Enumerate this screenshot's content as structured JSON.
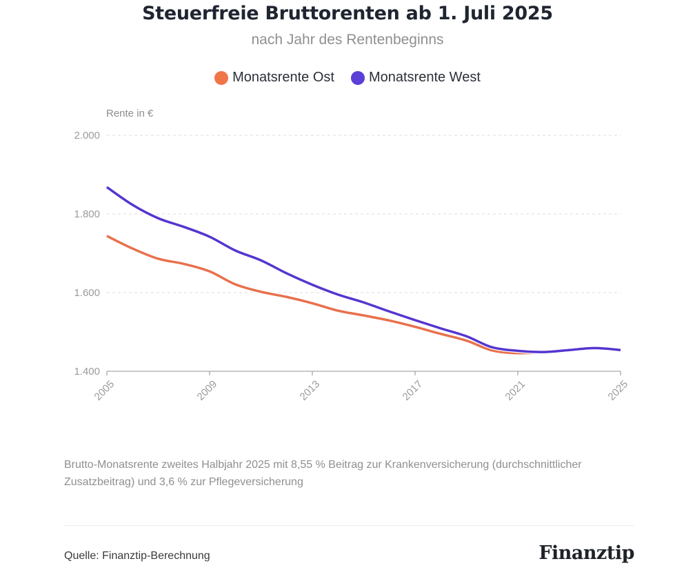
{
  "header": {
    "title": "Steuerfreie Bruttorenten ab 1. Juli 2025",
    "subtitle": "nach Jahr des Rentenbeginns"
  },
  "legend": [
    {
      "label": "Monatsrente Ost",
      "color": "#F0764A"
    },
    {
      "label": "Monatsrente West",
      "color": "#5B3FD6"
    }
  ],
  "chart_data": {
    "type": "line",
    "title": "Steuerfreie Bruttorenten ab 1. Juli 2025",
    "subtitle": "nach Jahr des Rentenbeginns",
    "xlabel": "",
    "ylabel": "Rente in €",
    "x": [
      2005,
      2006,
      2007,
      2008,
      2009,
      2010,
      2011,
      2012,
      2013,
      2014,
      2015,
      2016,
      2017,
      2018,
      2019,
      2020,
      2021,
      2022,
      2023,
      2024,
      2025
    ],
    "series": [
      {
        "name": "Monatsrente Ost",
        "color": "#E8704C",
        "values": [
          1744,
          1712,
          1686,
          1673,
          1654,
          1621,
          1602,
          1589,
          1573,
          1554,
          1542,
          1529,
          1513,
          1495,
          1478,
          1453,
          1446,
          1449,
          1454,
          1459,
          1454
        ]
      },
      {
        "name": "Monatsrente West",
        "color": "#5535CF",
        "values": [
          1868,
          1823,
          1789,
          1767,
          1742,
          1707,
          1682,
          1649,
          1620,
          1595,
          1575,
          1552,
          1530,
          1509,
          1489,
          1461,
          1452,
          1449,
          1454,
          1459,
          1454
        ]
      }
    ],
    "ylim": [
      1400,
      2000
    ],
    "xlim": [
      2005,
      2025
    ],
    "yticks": [
      1400,
      1600,
      1800,
      2000
    ],
    "ytick_labels": [
      "1.400",
      "1.600",
      "1.800",
      "2.000"
    ],
    "xticks": [
      2005,
      2009,
      2013,
      2017,
      2021,
      2025
    ],
    "xtick_labels": [
      "2005",
      "2009",
      "2013",
      "2017",
      "2021",
      "2025"
    ],
    "grid": "horizontal dashed",
    "legend_position": "top-center"
  },
  "footer": {
    "note": "Brutto-Monatsrente zweites Halbjahr 2025 mit 8,55 % Beitrag zur Krankenversicherung (durchschnittlicher Zusatzbeitrag) und 3,6 % zur Pflegeversicherung",
    "source": "Quelle: Finanztip-Berechnung",
    "logo": "Finanztip"
  }
}
